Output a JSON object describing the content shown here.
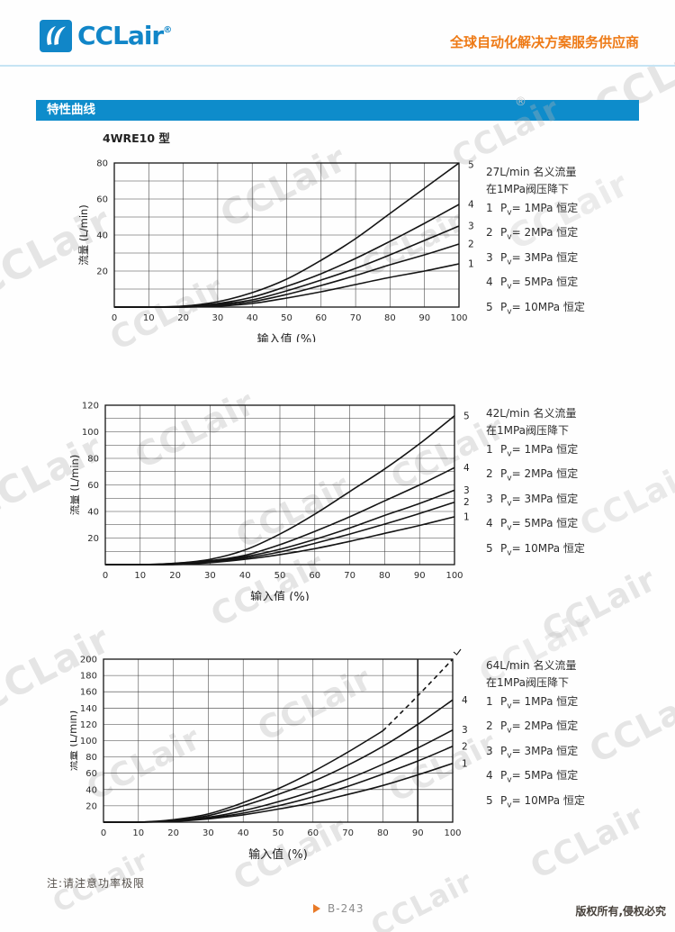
{
  "header": {
    "logo_text": "CCLair",
    "reg": "®",
    "tagline": "全球自动化解决方案服务供应商"
  },
  "section_title": "特性曲线",
  "model_label": "4WRE10 型",
  "watermark": "CCLair",
  "note": "注:请注意功率极限",
  "footer": {
    "page": "B-243",
    "copyright": "版权所有,侵权必究"
  },
  "colors": {
    "brand_blue": "#1186c8",
    "banner_blue": "#0e8ccb",
    "tagline_orange": "#ee7a16",
    "arrow_orange": "#e87a28",
    "curve_black": "#141414"
  },
  "chart_data": [
    {
      "type": "line",
      "nominal": "27L/min 名义流量",
      "condition": "在1MPa阀压降下",
      "xlabel": "输入值  (%)",
      "ylabel": "流量 (L/min)",
      "xlim": [
        0,
        100
      ],
      "ylim": [
        0,
        80
      ],
      "grid_x_step": 10,
      "grid_y_step": 10,
      "ytick_step": 20,
      "legend_suffix": "恒定",
      "x": [
        0,
        10,
        20,
        30,
        40,
        50,
        60,
        70,
        80,
        90,
        100
      ],
      "series": [
        {
          "name": "1",
          "pressure": "1MPa",
          "values": [
            0,
            0,
            0,
            0.5,
            2,
            5,
            8.5,
            12.5,
            16.5,
            20,
            24
          ]
        },
        {
          "name": "2",
          "pressure": "2MPa",
          "values": [
            0,
            0,
            0,
            1,
            3,
            7,
            12,
            17.5,
            23.5,
            29,
            35
          ]
        },
        {
          "name": "3",
          "pressure": "3MPa",
          "values": [
            0,
            0,
            0,
            1.5,
            4,
            9,
            15,
            21.5,
            29,
            37,
            45
          ]
        },
        {
          "name": "4",
          "pressure": "5MPa",
          "values": [
            0,
            0,
            0.5,
            2,
            5.5,
            11.5,
            18.5,
            27,
            36.5,
            46.5,
            57
          ]
        },
        {
          "name": "5",
          "pressure": "10MPa",
          "values": [
            0,
            0,
            0.5,
            3,
            8,
            15.5,
            26,
            38,
            52,
            66,
            80
          ]
        }
      ]
    },
    {
      "type": "line",
      "nominal": "42L/min 名义流量",
      "condition": "在1MPa阀压降下",
      "xlabel": "输入值  (%)",
      "ylabel": "流量 (L/min)",
      "xlim": [
        0,
        100
      ],
      "ylim": [
        0,
        120
      ],
      "grid_x_step": 10,
      "grid_y_step": 10,
      "ytick_step": 20,
      "legend_suffix": "恒定",
      "x": [
        0,
        10,
        20,
        30,
        40,
        50,
        60,
        70,
        80,
        90,
        100
      ],
      "series": [
        {
          "name": "1",
          "pressure": "1MPa",
          "values": [
            0,
            0,
            0,
            1.5,
            4,
            7.5,
            12,
            17.5,
            23.5,
            29.5,
            36
          ]
        },
        {
          "name": "2",
          "pressure": "2MPa",
          "values": [
            0,
            0,
            0.5,
            2,
            5,
            9.5,
            16,
            23,
            30.5,
            38.5,
            47
          ]
        },
        {
          "name": "3",
          "pressure": "3MPa",
          "values": [
            0,
            0,
            0.5,
            2.5,
            6,
            11.5,
            19,
            27.5,
            37,
            46,
            56
          ]
        },
        {
          "name": "4",
          "pressure": "5MPa",
          "values": [
            0,
            0,
            1,
            3,
            7,
            15,
            25,
            36,
            48,
            60,
            73
          ]
        },
        {
          "name": "5",
          "pressure": "10MPa",
          "values": [
            0,
            0,
            1,
            4,
            11,
            23,
            38,
            55,
            72,
            91,
            112
          ]
        }
      ]
    },
    {
      "type": "line",
      "nominal": "64L/min 名义流量",
      "condition": "在1MPa阀压降下",
      "xlabel": "输入值  (%)",
      "ylabel": "流量 (L/min)",
      "xlim": [
        0,
        100
      ],
      "ylim": [
        0,
        200
      ],
      "grid_x_step": 10,
      "grid_y_step": 20,
      "ytick_step": 20,
      "legend_suffix": "恒定",
      "limit_line_x": 90,
      "x": [
        0,
        10,
        20,
        30,
        40,
        50,
        60,
        70,
        80,
        90,
        100
      ],
      "series": [
        {
          "name": "1",
          "pressure": "1MPa",
          "values": [
            0,
            0,
            1,
            4,
            9,
            16,
            24,
            34,
            45,
            58,
            72
          ]
        },
        {
          "name": "2",
          "pressure": "2MPa",
          "values": [
            0,
            0,
            1,
            5,
            11,
            20,
            31,
            44,
            59,
            75,
            93
          ]
        },
        {
          "name": "3",
          "pressure": "3MPa",
          "values": [
            0,
            0,
            1.5,
            6,
            14,
            25,
            38,
            53,
            71,
            91,
            113
          ]
        },
        {
          "name": "4",
          "pressure": "5MPa",
          "values": [
            0,
            0,
            2,
            8,
            20,
            34,
            50,
            70,
            93,
            120,
            150
          ]
        },
        {
          "name": "5",
          "pressure": "10MPa",
          "values": [
            0,
            0,
            3,
            10,
            24,
            41,
            62,
            86,
            112,
            155,
            200
          ],
          "dash_from": 80,
          "end_label": false,
          "overflow_arrow": true
        }
      ]
    }
  ]
}
